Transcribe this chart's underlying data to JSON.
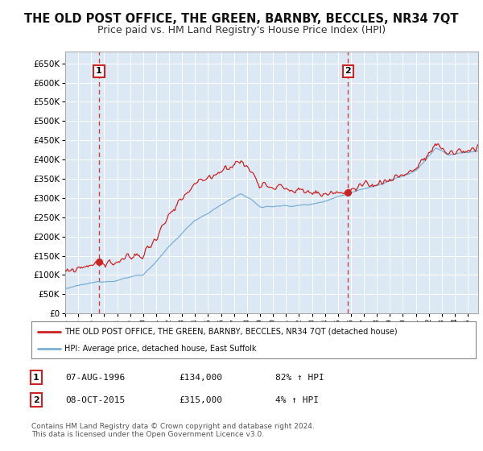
{
  "title": "THE OLD POST OFFICE, THE GREEN, BARNBY, BECCLES, NR34 7QT",
  "subtitle": "Price paid vs. HM Land Registry's House Price Index (HPI)",
  "ylim": [
    0,
    680000
  ],
  "yticks": [
    0,
    50000,
    100000,
    150000,
    200000,
    250000,
    300000,
    350000,
    400000,
    450000,
    500000,
    550000,
    600000,
    650000
  ],
  "ytick_labels": [
    "£0",
    "£50K",
    "£100K",
    "£150K",
    "£200K",
    "£250K",
    "£300K",
    "£350K",
    "£400K",
    "£450K",
    "£500K",
    "£550K",
    "£600K",
    "£650K"
  ],
  "background_color": "#ffffff",
  "plot_bg_color": "#dce9f5",
  "grid_color": "#ffffff",
  "hpi_color": "#7bafd4",
  "price_color": "#cc2222",
  "sale1_year": 1996.6,
  "sale1_price": 134000,
  "sale2_year": 2015.77,
  "sale2_price": 315000,
  "legend_price_label": "THE OLD POST OFFICE, THE GREEN, BARNBY, BECCLES, NR34 7QT (detached house)",
  "legend_hpi_label": "HPI: Average price, detached house, East Suffolk",
  "table_rows": [
    [
      "1",
      "07-AUG-1996",
      "£134,000",
      "82% ↑ HPI"
    ],
    [
      "2",
      "08-OCT-2015",
      "£315,000",
      "4% ↑ HPI"
    ]
  ],
  "footnote": "Contains HM Land Registry data © Crown copyright and database right 2024.\nThis data is licensed under the Open Government Licence v3.0.",
  "title_fontsize": 10.5,
  "subtitle_fontsize": 9
}
